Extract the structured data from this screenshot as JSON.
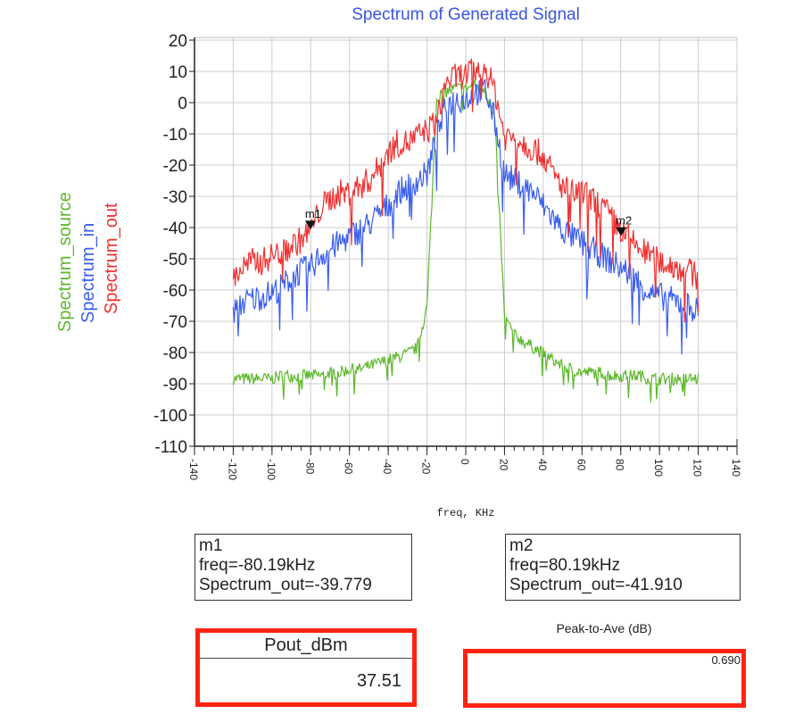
{
  "chart_data": {
    "type": "line",
    "title": "Spectrum of Generated Signal",
    "xlabel": "freq, KHz",
    "ylabel": "",
    "xlim": [
      -140,
      140
    ],
    "ylim": [
      -110,
      20
    ],
    "xticks": [
      -140,
      -120,
      -100,
      -80,
      -60,
      -40,
      -20,
      0,
      20,
      40,
      60,
      80,
      100,
      120,
      140
    ],
    "yticks": [
      20,
      10,
      0,
      -10,
      -20,
      -30,
      -40,
      -50,
      -60,
      -70,
      -80,
      -90,
      -100,
      -110
    ],
    "grid": true,
    "legend": [
      "Spectrum_source",
      "Spectrum_in",
      "Spectrum_out"
    ],
    "legend_placement": "left-vertical",
    "x": [
      -120,
      -115,
      -110,
      -105,
      -100,
      -95,
      -90,
      -85,
      -80,
      -75,
      -70,
      -65,
      -60,
      -55,
      -50,
      -45,
      -40,
      -35,
      -30,
      -25,
      -20,
      -15,
      -10,
      -5,
      0,
      5,
      10,
      15,
      20,
      25,
      30,
      35,
      40,
      45,
      50,
      55,
      60,
      65,
      70,
      75,
      80,
      85,
      90,
      95,
      100,
      105,
      110,
      115,
      120
    ],
    "series": [
      {
        "name": "Spectrum_source",
        "color": "#5cb82a",
        "values": [
          -88,
          -88,
          -88,
          -88,
          -88,
          -87,
          -87,
          -87,
          -87,
          -87,
          -86,
          -86,
          -85,
          -85,
          -84,
          -83,
          -82,
          -81,
          -80,
          -78,
          -65,
          2,
          4,
          5,
          5,
          6,
          5,
          -5,
          -68,
          -74,
          -76,
          -78,
          -80,
          -82,
          -84,
          -85,
          -86,
          -86,
          -86,
          -87,
          -87,
          -87,
          -87,
          -88,
          -88,
          -88,
          -88,
          -88,
          -88
        ]
      },
      {
        "name": "Spectrum_in",
        "color": "#3a5ef0",
        "values": [
          -66,
          -63,
          -62,
          -61,
          -60,
          -58,
          -55,
          -53,
          -52,
          -48,
          -46,
          -44,
          -42,
          -40,
          -38,
          -35,
          -32,
          -28,
          -26,
          -24,
          -22,
          -10,
          0,
          2,
          2,
          4,
          5,
          -5,
          -22,
          -24,
          -26,
          -28,
          -32,
          -36,
          -40,
          -42,
          -44,
          -46,
          -48,
          -50,
          -52,
          -54,
          -57,
          -60,
          -61,
          -62,
          -63,
          -64,
          -66
        ]
      },
      {
        "name": "Spectrum_out",
        "color": "#f03030",
        "values": [
          -55,
          -52,
          -50,
          -50,
          -48,
          -47,
          -45,
          -43,
          -40,
          -33,
          -30,
          -28,
          -28,
          -26,
          -24,
          -20,
          -15,
          -12,
          -12,
          -10,
          -8,
          -5,
          8,
          9,
          10,
          11,
          12,
          5,
          -10,
          -10,
          -12,
          -14,
          -16,
          -22,
          -26,
          -28,
          -28,
          -30,
          -32,
          -36,
          -40,
          -43,
          -46,
          -48,
          -50,
          -51,
          -52,
          -53,
          -55
        ]
      }
    ],
    "markers": [
      {
        "name": "m1",
        "x": -80.19,
        "y": -39.779,
        "line1": "m1",
        "line2": "freq=-80.19kHz",
        "line3": "Spectrum_out=-39.779"
      },
      {
        "name": "m2",
        "x": 80.19,
        "y": -41.91,
        "line1": "m2",
        "line2": "freq=80.19kHz",
        "line3": "Spectrum_out=-41.910"
      }
    ]
  },
  "pout": {
    "label": "Pout_dBm",
    "value": "37.51"
  },
  "par": {
    "label": "Peak-to-Ave (dB)",
    "value": "0.690"
  }
}
